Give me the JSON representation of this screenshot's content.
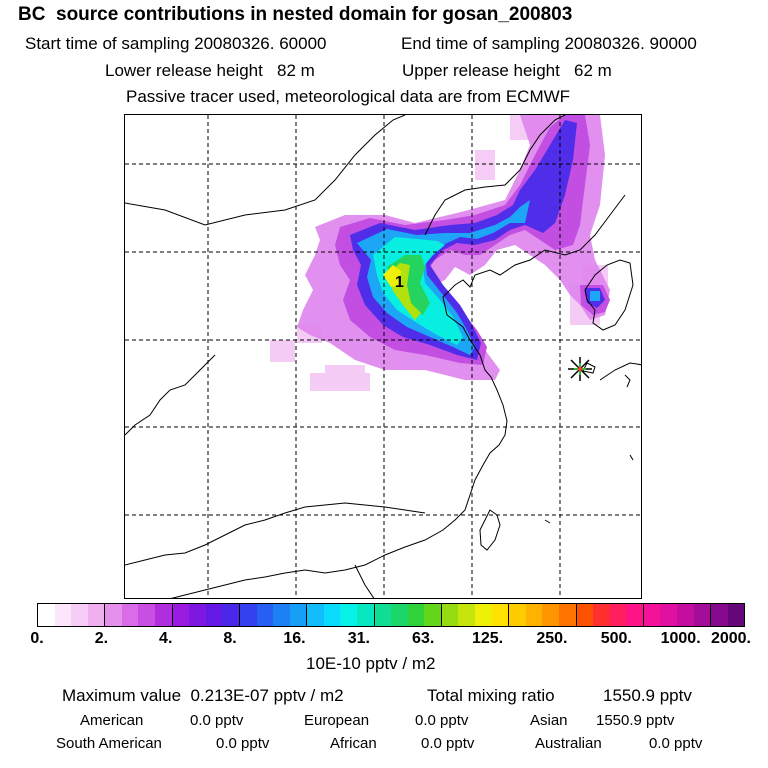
{
  "header": {
    "title": "BC  source contributions in nested domain for gosan_200803",
    "start_label": "Start time of sampling 20080326. 60000",
    "end_label": "End time of sampling 20080326. 90000",
    "lower_label": "Lower release height   82 m",
    "upper_label": "Upper release height   62 m",
    "tracer_label": "Passive tracer used, meteorological data are from ECMWF"
  },
  "map": {
    "marker_label": "1",
    "receptor_icon": "receptor-star-icon",
    "grid_lines": "dashed",
    "coastline_color": "#000000"
  },
  "colorbar": {
    "unit": "10E-10 pptv / m2",
    "tick_labels": [
      "0.",
      "2.",
      "4.",
      "8.",
      "16.",
      "31.",
      "63.",
      "125.",
      "250.",
      "500.",
      "1000.",
      "2000."
    ],
    "colors": [
      "#ffffff",
      "#fbe6fb",
      "#f6cdf6",
      "#f0b0f0",
      "#e690ee",
      "#d96de9",
      "#c94fe4",
      "#b12edf",
      "#9b1ce0",
      "#7f17e3",
      "#6419e6",
      "#4a28ea",
      "#3441ee",
      "#2660f2",
      "#1d80f5",
      "#179ff8",
      "#11bdfb",
      "#0bdcfe",
      "#06f1e8",
      "#08e8c0",
      "#0fde94",
      "#1bd66a",
      "#2fd238",
      "#63d61c",
      "#97dc12",
      "#c6e50c",
      "#eef007",
      "#ffe200",
      "#ffcc00",
      "#ffb300",
      "#ff9500",
      "#ff7400",
      "#ff5200",
      "#ff2f2f",
      "#ff1f5e",
      "#ff1487",
      "#f5129b",
      "#e110a0",
      "#c40e9f",
      "#a40c9a",
      "#860a8e",
      "#660779"
    ]
  },
  "stats": {
    "max_label": "Maximum value  0.213E-07 pptv / m2",
    "total_label": "Total mixing ratio",
    "total_value": "1550.9 pptv",
    "american_label": "American",
    "american_value": "0.0 pptv",
    "european_label": "European",
    "european_value": "0.0 pptv",
    "asian_label": "Asian",
    "asian_value": "1550.9 pptv",
    "south_american_label": "South American",
    "south_american_value": "0.0 pptv",
    "african_label": "African",
    "african_value": "0.0 pptv",
    "australian_label": "Australian",
    "australian_value": "0.0 pptv"
  }
}
